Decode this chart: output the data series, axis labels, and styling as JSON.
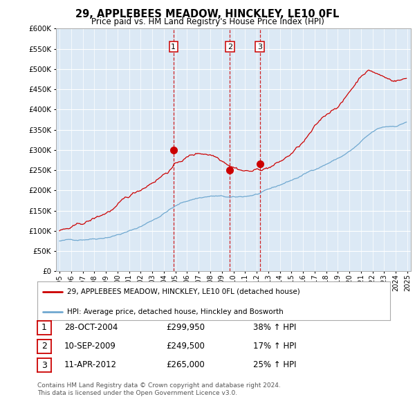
{
  "title": "29, APPLEBEES MEADOW, HINCKLEY, LE10 0FL",
  "subtitle": "Price paid vs. HM Land Registry's House Price Index (HPI)",
  "legend_line1": "29, APPLEBEES MEADOW, HINCKLEY, LE10 0FL (detached house)",
  "legend_line2": "HPI: Average price, detached house, Hinckley and Bosworth",
  "table_rows": [
    [
      "1",
      "28-OCT-2004",
      "£299,950",
      "38% ↑ HPI"
    ],
    [
      "2",
      "10-SEP-2009",
      "£249,500",
      "17% ↑ HPI"
    ],
    [
      "3",
      "11-APR-2012",
      "£265,000",
      "25% ↑ HPI"
    ]
  ],
  "footer": "Contains HM Land Registry data © Crown copyright and database right 2024.\nThis data is licensed under the Open Government Licence v3.0.",
  "hpi_color": "#6fa8d0",
  "price_color": "#cc0000",
  "background_plot": "#dce9f5",
  "grid_color": "#ffffff",
  "ylim": [
    0,
    600000
  ],
  "yticks": [
    0,
    50000,
    100000,
    150000,
    200000,
    250000,
    300000,
    350000,
    400000,
    450000,
    500000,
    550000,
    600000
  ],
  "sale_dates": [
    2004.83,
    2009.69,
    2012.28
  ],
  "sale_prices": [
    299950,
    249500,
    265000
  ],
  "sale_labels": [
    "1",
    "2",
    "3"
  ],
  "xmin": 1995.0,
  "xmax": 2025.2
}
